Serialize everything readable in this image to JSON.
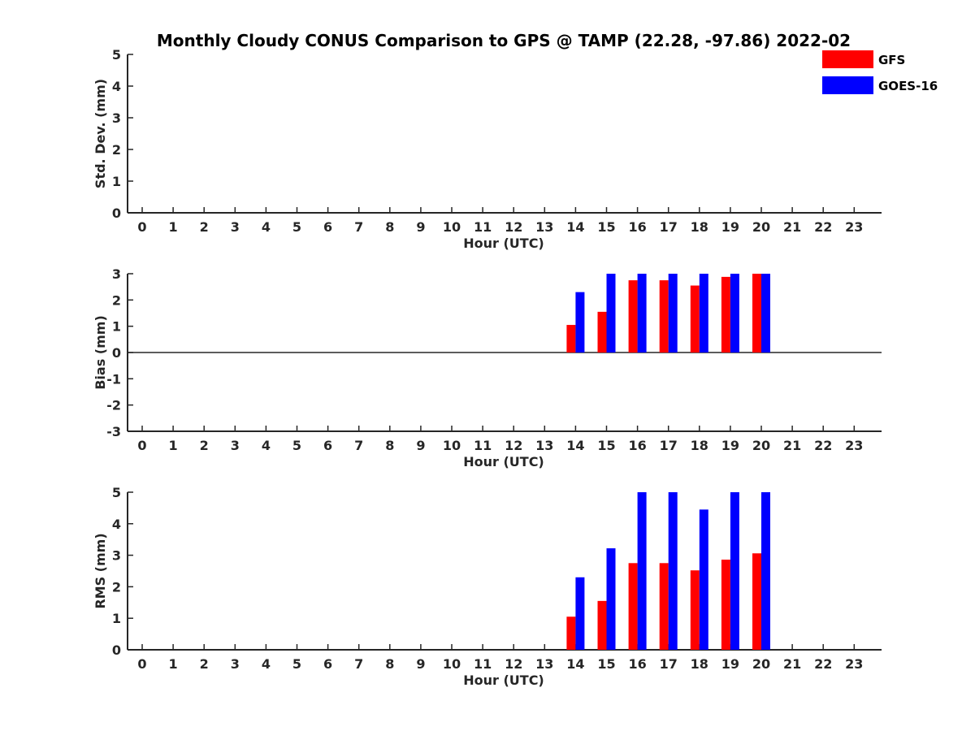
{
  "figure": {
    "title": "Monthly Cloudy CONUS Comparison to GPS @ TAMP (22.28, -97.86) 2022-02"
  },
  "legend": {
    "placement": "top-right, outside plot",
    "items": [
      {
        "name": "GFS",
        "color": "#ff0000"
      },
      {
        "name": "GOES-16",
        "color": "#0000ff"
      }
    ]
  },
  "chart_data": [
    {
      "type": "bar",
      "title": "Monthly Cloudy CONUS Comparison to GPS @ TAMP (22.28, -97.86) 2022-02",
      "xlabel": "Hour (UTC)",
      "ylabel": "Std. Dev. (mm)",
      "ylim": [
        0,
        5
      ],
      "yticks": [
        "0",
        "1",
        "2",
        "3",
        "4",
        "5"
      ],
      "grid": false,
      "categories": [
        "0",
        "1",
        "2",
        "3",
        "4",
        "5",
        "6",
        "7",
        "8",
        "9",
        "10",
        "11",
        "12",
        "13",
        "14",
        "15",
        "16",
        "17",
        "18",
        "19",
        "20",
        "21",
        "22",
        "23"
      ],
      "series": [
        {
          "name": "GFS",
          "color": "#ff0000",
          "values": [
            null,
            null,
            null,
            null,
            null,
            null,
            null,
            null,
            null,
            null,
            null,
            null,
            null,
            null,
            null,
            null,
            null,
            null,
            null,
            null,
            null,
            null,
            null,
            null
          ]
        },
        {
          "name": "GOES-16",
          "color": "#0000ff",
          "values": [
            null,
            null,
            null,
            null,
            null,
            null,
            null,
            null,
            null,
            null,
            null,
            null,
            null,
            null,
            null,
            null,
            null,
            null,
            null,
            null,
            null,
            null,
            null,
            null
          ]
        }
      ]
    },
    {
      "type": "bar",
      "xlabel": "Hour (UTC)",
      "ylabel": "Bias (mm)",
      "ylim": [
        -3,
        3
      ],
      "yticks": [
        "-3",
        "-2",
        "-1",
        "0",
        "1",
        "2",
        "3"
      ],
      "grid": false,
      "zero_line": true,
      "categories": [
        "0",
        "1",
        "2",
        "3",
        "4",
        "5",
        "6",
        "7",
        "8",
        "9",
        "10",
        "11",
        "12",
        "13",
        "14",
        "15",
        "16",
        "17",
        "18",
        "19",
        "20",
        "21",
        "22",
        "23"
      ],
      "series": [
        {
          "name": "GFS",
          "color": "#ff0000",
          "values": [
            null,
            null,
            null,
            null,
            null,
            null,
            null,
            null,
            null,
            null,
            null,
            null,
            null,
            null,
            1.05,
            1.55,
            2.75,
            2.75,
            2.55,
            2.88,
            3.0,
            null,
            null,
            null
          ]
        },
        {
          "name": "GOES-16",
          "color": "#0000ff",
          "values": [
            null,
            null,
            null,
            null,
            null,
            null,
            null,
            null,
            null,
            null,
            null,
            null,
            null,
            null,
            2.3,
            3.0,
            3.0,
            3.0,
            3.0,
            3.0,
            3.0,
            null,
            null,
            null
          ]
        }
      ]
    },
    {
      "type": "bar",
      "xlabel": "Hour (UTC)",
      "ylabel": "RMS (mm)",
      "ylim": [
        0,
        5
      ],
      "yticks": [
        "0",
        "1",
        "2",
        "3",
        "4",
        "5"
      ],
      "grid": false,
      "categories": [
        "0",
        "1",
        "2",
        "3",
        "4",
        "5",
        "6",
        "7",
        "8",
        "9",
        "10",
        "11",
        "12",
        "13",
        "14",
        "15",
        "16",
        "17",
        "18",
        "19",
        "20",
        "21",
        "22",
        "23"
      ],
      "series": [
        {
          "name": "GFS",
          "color": "#ff0000",
          "values": [
            null,
            null,
            null,
            null,
            null,
            null,
            null,
            null,
            null,
            null,
            null,
            null,
            null,
            null,
            1.05,
            1.55,
            2.75,
            2.75,
            2.52,
            2.86,
            3.06,
            null,
            null,
            null
          ]
        },
        {
          "name": "GOES-16",
          "color": "#0000ff",
          "values": [
            null,
            null,
            null,
            null,
            null,
            null,
            null,
            null,
            null,
            null,
            null,
            null,
            null,
            null,
            2.3,
            3.22,
            5.0,
            5.0,
            4.45,
            5.0,
            5.0,
            null,
            null,
            null
          ]
        }
      ]
    }
  ]
}
